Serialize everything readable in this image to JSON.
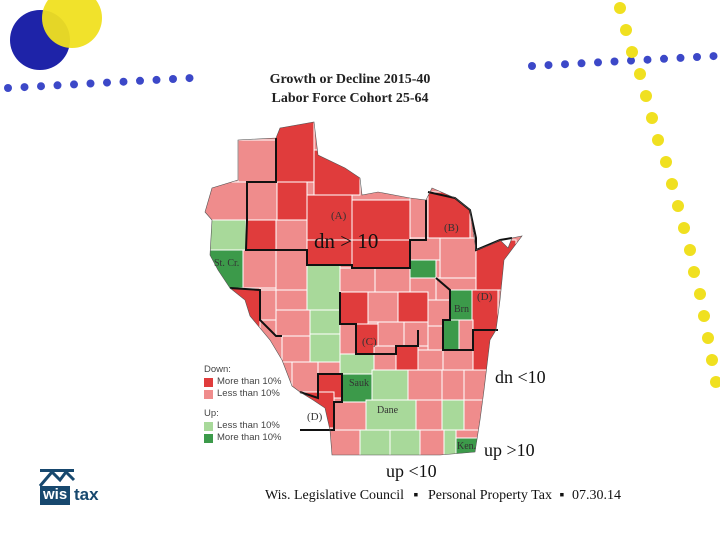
{
  "title_line1": "Growth or Decline 2015-40",
  "title_line2": "Labor Force Cohort 25-64",
  "colors": {
    "down_more_10": "#e03c3c",
    "down_less_10": "#ef8c8c",
    "up_less_10": "#a8d99a",
    "up_more_10": "#3c9a4a",
    "background": "#ffffff",
    "deco_blue": "#3c48c8",
    "deco_yellow": "#f0e020",
    "circle_blue": "#1e23a8"
  },
  "region_labels": {
    "a": "(A)",
    "b": "(B)",
    "c": "(C)",
    "d_east": "(D)",
    "d_south": "(D)",
    "st_cr": "St. Cr.",
    "brn": "Brn",
    "sauk": "Sauk",
    "dane": "Dane",
    "ken": "Ken."
  },
  "annotations": {
    "dn_gt_10": "dn > 10",
    "dn_lt_10": "dn <10",
    "up_gt_10": "up >10",
    "up_lt_10": "up <10"
  },
  "legend": {
    "down_heading": "Down:",
    "down_more": "More than 10%",
    "down_less": "Less than 10%",
    "up_heading": "Up:",
    "up_less": "Less than 10%",
    "up_more": "More than 10%"
  },
  "footer": {
    "org": "Wis. Legislative Council",
    "sep1": "▪",
    "topic": "Personal Property Tax",
    "sep2": "▪",
    "date": "07.30.14"
  },
  "logo": {
    "wis": "wis",
    "tax": "tax"
  }
}
